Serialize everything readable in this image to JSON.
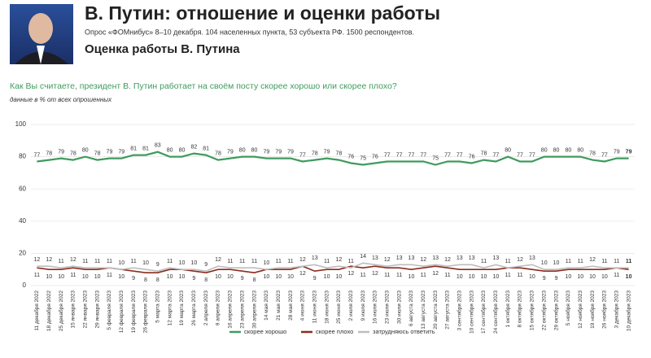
{
  "chart_data": {
    "type": "line",
    "title": "В. Путин: отношение и оценки работы",
    "subtitle": "Опрос «ФОМнибус» 8–10 декабря. 104 населенных пункта, 53 субъекта РФ. 1500 респондентов.",
    "heading": "Оценка работы В. Путина",
    "question": "Как Вы считаете, президент В. Путин работает на своём посту скорее хорошо или скорее плохо?",
    "note": "данные в % от всех опрошенных",
    "categories": [
      "11 декабря 2022",
      "18 декабря 2022",
      "25 декабря 2022",
      "15 января 2023",
      "22 января 2023",
      "29 января 2023",
      "5 февраля 2023",
      "12 февраля 2023",
      "19 февраля 2023",
      "26 февраля 2023",
      "5 марта 2023",
      "12 марта 2023",
      "19 марта 2023",
      "26 марта 2023",
      "2 апреля 2023",
      "9 апреля 2023",
      "16 апреля 2023",
      "23 апреля 2023",
      "30 апреля 2023",
      "14 мая 2023",
      "21 мая 2023",
      "28 мая 2023",
      "4 июня 2023",
      "11 июня 2023",
      "18 июня 2023",
      "25 июня 2023",
      "2 июля 2023",
      "9 июля 2023",
      "16 июля 2023",
      "23 июля 2023",
      "30 июля 2023",
      "6 августа 2023",
      "13 августа 2023",
      "20 августа 2023",
      "27 августа 2023",
      "3 сентября 2023",
      "10 сентября 2023",
      "17 сентября 2023",
      "24 сентября 2023",
      "1 октября 2023",
      "8 октября 2023",
      "15 октября 2023",
      "22 октября 2023",
      "29 октября 2023",
      "5 ноября 2023",
      "12 ноября 2023",
      "19 ноября 2023",
      "26 ноября 2023",
      "3 декабря 2023",
      "10 декабря 2023"
    ],
    "series": [
      {
        "name": "скорее хорошо",
        "color": "#3f9b5e",
        "values": [
          77,
          78,
          79,
          78,
          80,
          78,
          79,
          79,
          81,
          81,
          83,
          80,
          80,
          82,
          81,
          78,
          79,
          80,
          80,
          79,
          79,
          79,
          77,
          78,
          79,
          78,
          76,
          75,
          76,
          77,
          77,
          77,
          77,
          75,
          77,
          77,
          76,
          78,
          77,
          80,
          77,
          77,
          80,
          80,
          80,
          80,
          78,
          77,
          79,
          79
        ]
      },
      {
        "name": "скорее плохо",
        "color": "#8b2c1f",
        "values": [
          11,
          10,
          10,
          11,
          10,
          10,
          11,
          10,
          9,
          8,
          8,
          10,
          10,
          9,
          8,
          10,
          10,
          9,
          8,
          10,
          10,
          10,
          12,
          9,
          10,
          10,
          12,
          11,
          12,
          11,
          11,
          10,
          11,
          12,
          11,
          10,
          10,
          10,
          10,
          11,
          11,
          10,
          9,
          9,
          10,
          10,
          10,
          10,
          11,
          10
        ]
      },
      {
        "name": "затрудняюсь ответить",
        "color": "#bdbdbd",
        "values": [
          12,
          12,
          11,
          12,
          11,
          11,
          11,
          10,
          11,
          10,
          9,
          11,
          10,
          10,
          9,
          12,
          11,
          11,
          11,
          10,
          11,
          11,
          12,
          13,
          11,
          12,
          11,
          14,
          13,
          12,
          13,
          13,
          12,
          13,
          12,
          13,
          13,
          11,
          13,
          11,
          12,
          13,
          10,
          10,
          11,
          11,
          12,
          11,
          11,
          11
        ]
      }
    ],
    "ylim": [
      0,
      100
    ],
    "yticks": [
      0,
      20,
      40,
      60,
      80,
      100
    ],
    "grid": true,
    "legend": "bottom"
  }
}
